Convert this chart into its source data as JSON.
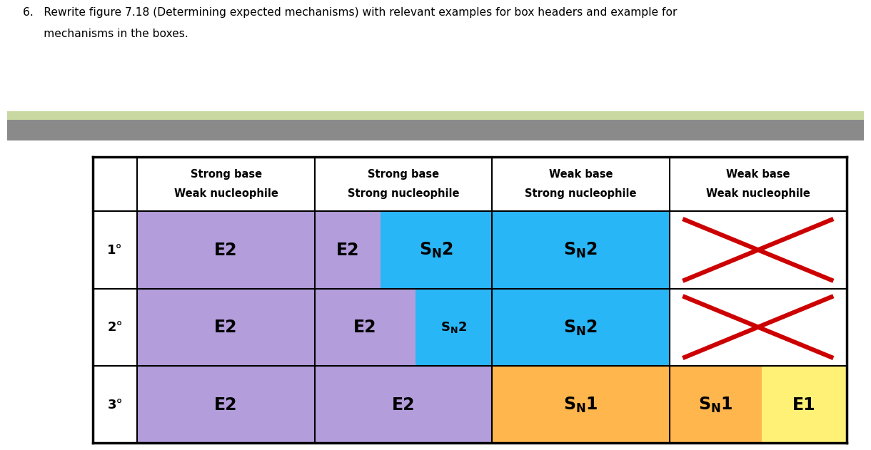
{
  "title_line1": "6.   Rewrite figure 7.18 (Determining expected mechanisms) with relevant examples for box headers and example for",
  "title_line2": "      mechanisms in the boxes.",
  "green_bar_color": "#c8d8a0",
  "gray_bar_color": "#8a8a8a",
  "col_headers": [
    [
      "Strong base",
      "Weak nucleophile"
    ],
    [
      "Strong base",
      "Strong nucleophile"
    ],
    [
      "Weak base",
      "Strong nucleophile"
    ],
    [
      "Weak base",
      "Weak nucleophile"
    ]
  ],
  "row_labels": [
    "1°",
    "2°",
    "3°"
  ],
  "purple": "#b39ddb",
  "cyan": "#29b6f6",
  "orange": "#ffb74d",
  "yellow": "#fff176",
  "white": "#ffffff",
  "red_x": "#cc0000",
  "row0_split1": 0.37,
  "row1_split1": 0.57,
  "row2_split3": 0.52
}
